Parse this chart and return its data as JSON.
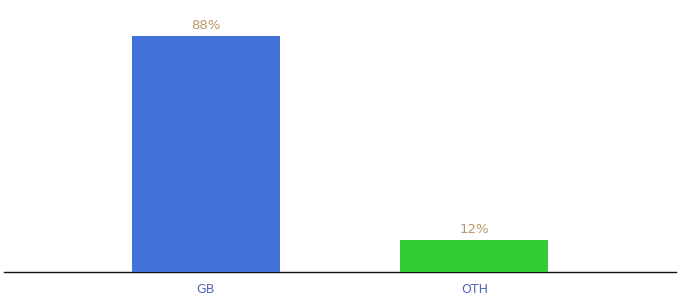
{
  "categories": [
    "GB",
    "OTH"
  ],
  "values": [
    88,
    12
  ],
  "bar_colors": [
    "#4472db",
    "#33cc33"
  ],
  "label_texts": [
    "88%",
    "12%"
  ],
  "background_color": "#ffffff",
  "ylim": [
    0,
    100
  ],
  "x_positions": [
    0.3,
    0.7
  ],
  "bar_width": 0.22,
  "label_fontsize": 9.5,
  "tick_fontsize": 9,
  "tick_color": "#5566bb",
  "label_color": "#b8956a"
}
